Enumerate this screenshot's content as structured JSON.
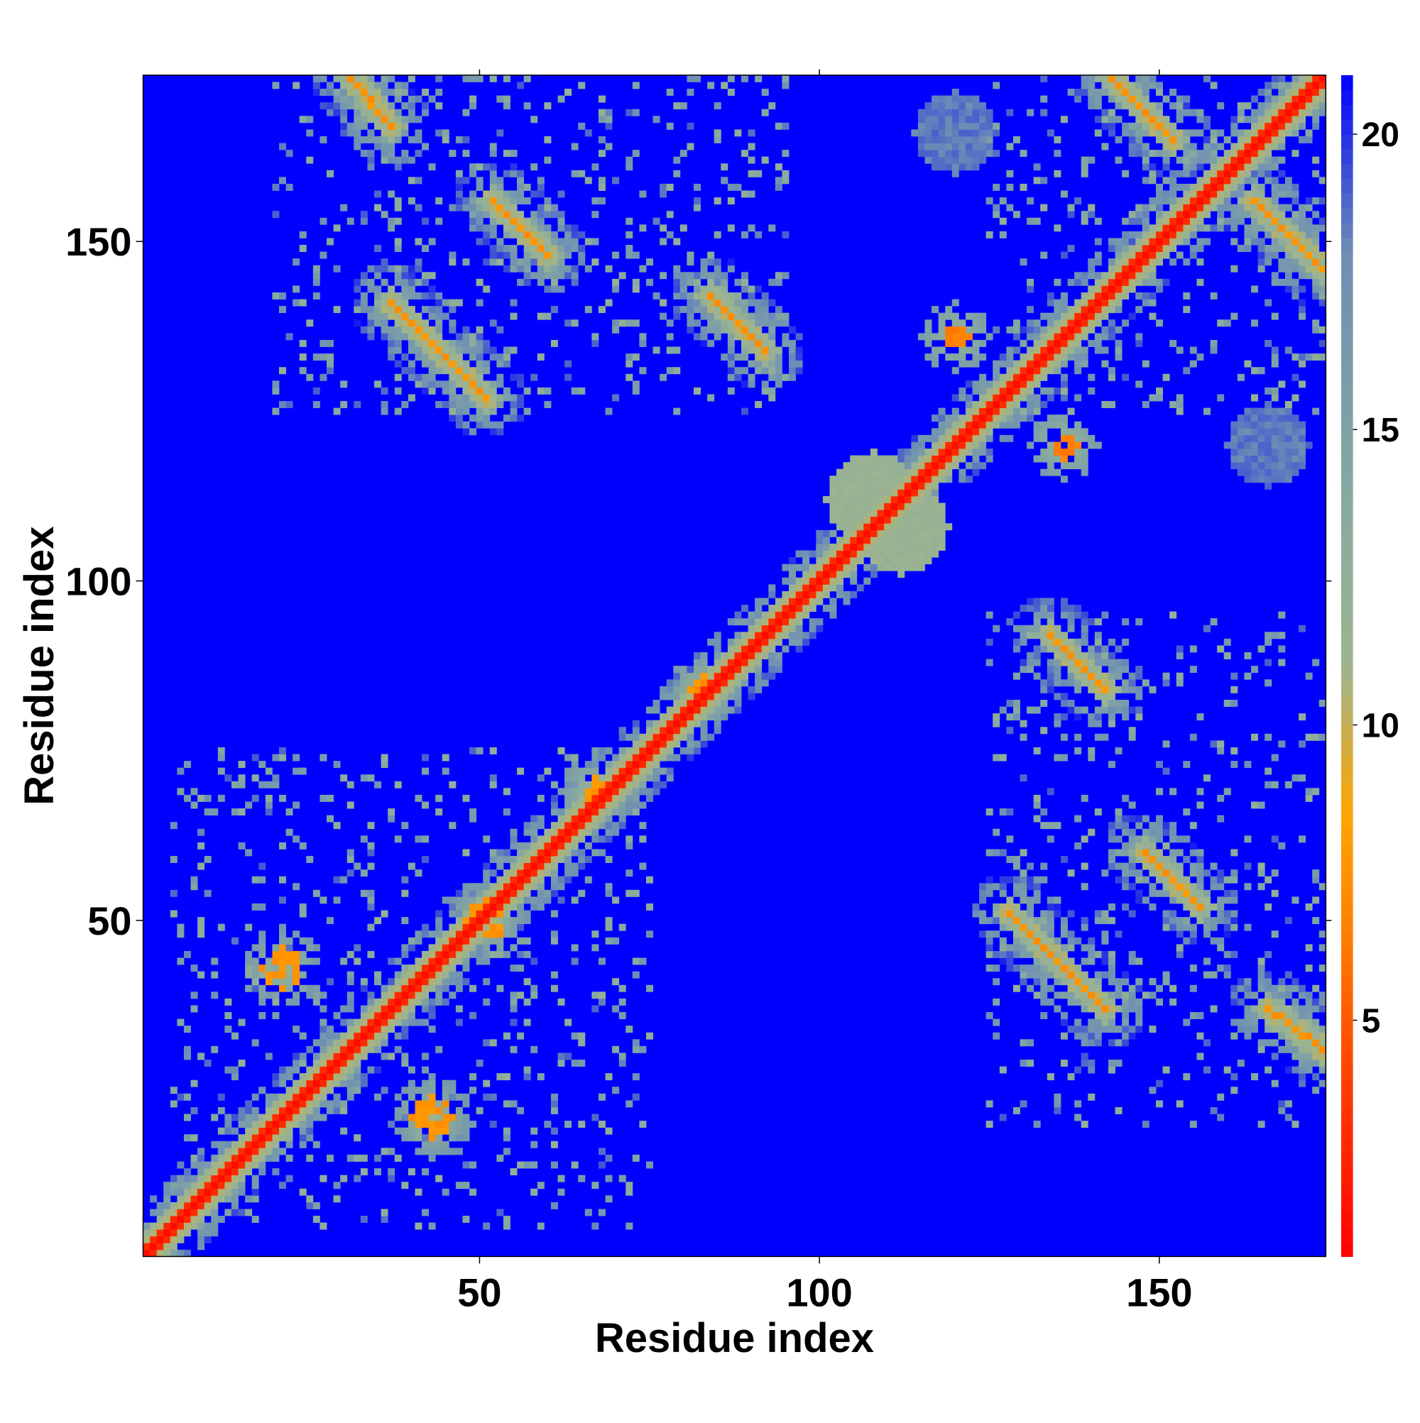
{
  "chart_data": {
    "type": "heatmap",
    "title": "",
    "xlabel": "Residue index",
    "ylabel": "Residue index",
    "n_residues": 174,
    "xlim": [
      1,
      174
    ],
    "ylim": [
      1,
      174
    ],
    "x_ticks": [
      50,
      100,
      150
    ],
    "y_ticks": [
      50,
      100,
      150
    ],
    "colorbar": {
      "range": [
        1,
        21
      ],
      "ticks": [
        5,
        10,
        15,
        20
      ],
      "colors": [
        "#ff0000",
        "#ff4000",
        "#ff8000",
        "#ffa500",
        "#9db490",
        "#86a8a0",
        "#6e8fb4",
        "#0000ff"
      ],
      "stops": [
        1,
        4,
        6.5,
        8.5,
        11,
        14,
        18,
        21
      ]
    },
    "diagonal_band": {
      "value": 1.5
    },
    "features": [
      {
        "kind": "antidiagonal_strand",
        "x1": 31,
        "y1": 174,
        "x2": 37,
        "y2": 167,
        "value": 7
      },
      {
        "kind": "antidiagonal_strand",
        "x1": 37,
        "y1": 141,
        "x2": 51,
        "y2": 127,
        "value": 7
      },
      {
        "kind": "antidiagonal_strand",
        "x1": 52,
        "y1": 156,
        "x2": 60,
        "y2": 148,
        "value": 7
      },
      {
        "kind": "antidiagonal_strand",
        "x1": 84,
        "y1": 142,
        "x2": 92,
        "y2": 134,
        "value": 7
      },
      {
        "kind": "antidiagonal_strand",
        "x1": 143,
        "y1": 174,
        "x2": 152,
        "y2": 165,
        "value": 7
      },
      {
        "kind": "antidiagonal_strand",
        "x1": 164,
        "y1": 156,
        "x2": 174,
        "y2": 146,
        "value": 7
      },
      {
        "kind": "antidiagonal_strand",
        "x1": 134,
        "y1": 92,
        "x2": 142,
        "y2": 84,
        "value": 7
      },
      {
        "kind": "antidiagonal_strand",
        "x1": 128,
        "y1": 51,
        "x2": 142,
        "y2": 37,
        "value": 7
      },
      {
        "kind": "antidiagonal_strand",
        "x1": 148,
        "y1": 60,
        "x2": 156,
        "y2": 52,
        "value": 7
      },
      {
        "kind": "antidiagonal_strand",
        "x1": 166,
        "y1": 37,
        "x2": 174,
        "y2": 31,
        "value": 7
      },
      {
        "kind": "blob",
        "x": 43,
        "y": 21,
        "r": 3,
        "value": 7
      },
      {
        "kind": "blob",
        "x": 21,
        "y": 43,
        "r": 3,
        "value": 7
      },
      {
        "kind": "blob",
        "x": 120,
        "y": 136,
        "r": 2,
        "value": 6
      },
      {
        "kind": "blob",
        "x": 136,
        "y": 120,
        "r": 2,
        "value": 6
      },
      {
        "kind": "blob",
        "x": 67,
        "y": 69,
        "r": 2,
        "value": 7
      },
      {
        "kind": "blob",
        "x": 83,
        "y": 84,
        "r": 2,
        "value": 7
      },
      {
        "kind": "blob",
        "x": 51,
        "y": 50,
        "r": 3,
        "value": 7
      },
      {
        "kind": "patch",
        "x": 120,
        "y": 166,
        "r": 6,
        "value": 18
      },
      {
        "kind": "patch",
        "x": 166,
        "y": 120,
        "r": 6,
        "value": 18
      },
      {
        "kind": "patch",
        "x": 108,
        "y": 112,
        "r": 7,
        "value": 11
      },
      {
        "kind": "patch",
        "x": 112,
        "y": 108,
        "r": 7,
        "value": 11
      }
    ]
  }
}
